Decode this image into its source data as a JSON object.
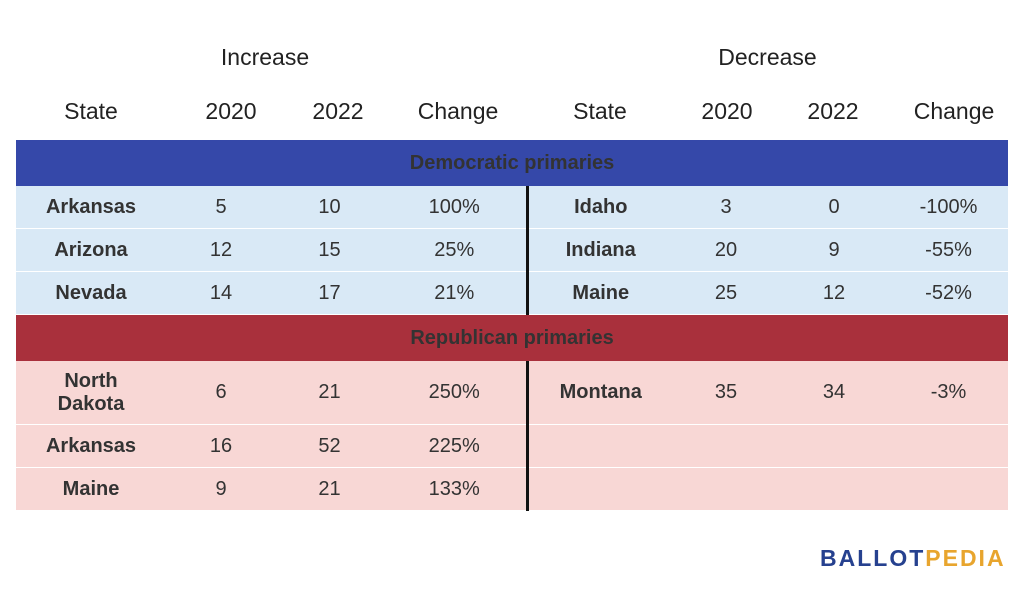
{
  "chart_data": {
    "type": "table",
    "groups": [
      "Increase",
      "Decrease"
    ],
    "columns": [
      "State",
      "2020",
      "2022",
      "Change",
      "State",
      "2020",
      "2022",
      "Change"
    ],
    "sections": [
      {
        "name": "Democratic primaries",
        "color": "#3548a9",
        "row_color": "#d9e9f6",
        "rows": [
          {
            "inc": [
              "Arkansas",
              "5",
              "10",
              "100%"
            ],
            "dec": [
              "Idaho",
              "3",
              "0",
              "-100%"
            ]
          },
          {
            "inc": [
              "Arizona",
              "12",
              "15",
              "25%"
            ],
            "dec": [
              "Indiana",
              "20",
              "9",
              "-55%"
            ]
          },
          {
            "inc": [
              "Nevada",
              "14",
              "17",
              "21%"
            ],
            "dec": [
              "Maine",
              "25",
              "12",
              "-52%"
            ]
          }
        ]
      },
      {
        "name": "Republican primaries",
        "color": "#a9303c",
        "row_color": "#f8d7d5",
        "rows": [
          {
            "inc": [
              "North Dakota",
              "6",
              "21",
              "250%"
            ],
            "dec": [
              "Montana",
              "35",
              "34",
              "-3%"
            ]
          },
          {
            "inc": [
              "Arkansas",
              "16",
              "52",
              "225%"
            ],
            "dec": [
              "",
              "",
              "",
              ""
            ]
          },
          {
            "inc": [
              "Maine",
              "9",
              "21",
              "133%"
            ],
            "dec": [
              "",
              "",
              "",
              ""
            ]
          }
        ]
      }
    ]
  },
  "logo": {
    "part1": "BALLOT",
    "part2": "PEDIA",
    "color1": "#26418f",
    "color2": "#e8a52e"
  }
}
